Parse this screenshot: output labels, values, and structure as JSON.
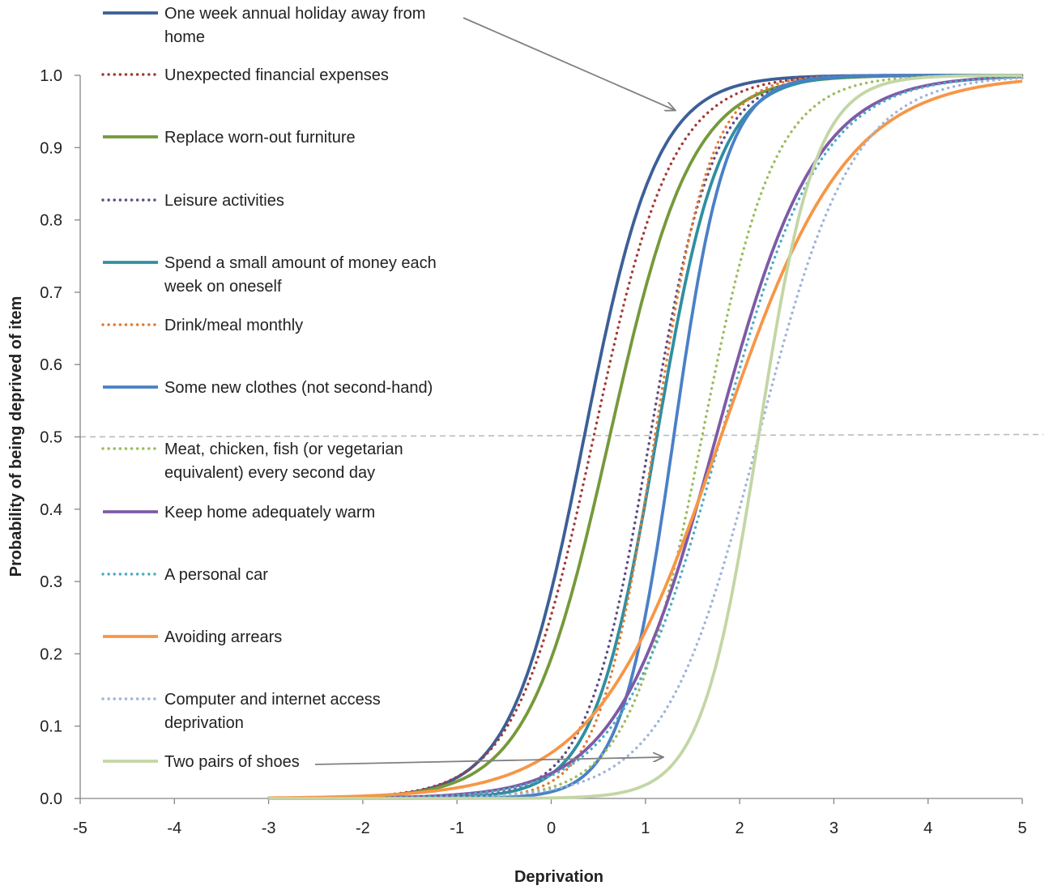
{
  "chart_data": {
    "type": "line",
    "title": "",
    "xlabel": "Deprivation",
    "ylabel": "Probability of being deprived of item",
    "xlim": [
      -5,
      5
    ],
    "ylim": [
      0,
      1
    ],
    "x_ticks": [
      "-5",
      "-4",
      "-3",
      "-2",
      "-1",
      "0",
      "1",
      "2",
      "3",
      "4",
      "5"
    ],
    "y_ticks": [
      "0.0",
      "0.1",
      "0.2",
      "0.3",
      "0.4",
      "0.5",
      "0.6",
      "0.7",
      "0.8",
      "0.9",
      "1.0"
    ],
    "x_range_plotted": [
      -3,
      5
    ],
    "reference_line": {
      "y": 0.5,
      "style": "dashed",
      "color": "#bbbbbb"
    },
    "grid": false,
    "legend_position": "left",
    "series": [
      {
        "name": "One week annual holiday away from home",
        "lines": [
          "One week annual holiday away from",
          "home"
        ],
        "color": "#3c5f96",
        "style": "solid",
        "discrimination": 2.6,
        "difficulty": 0.35
      },
      {
        "name": "Unexpected financial expenses",
        "lines": [
          "Unexpected financial expenses"
        ],
        "color": "#a33a37",
        "style": "dotted",
        "discrimination": 2.4,
        "difficulty": 0.45
      },
      {
        "name": "Replace worn-out furniture",
        "lines": [
          "Replace worn-out furniture"
        ],
        "color": "#76993a",
        "style": "solid",
        "discrimination": 2.3,
        "difficulty": 0.62
      },
      {
        "name": "Leisure activities",
        "lines": [
          "Leisure activities"
        ],
        "color": "#5f4a80",
        "style": "dotted",
        "discrimination": 3.0,
        "difficulty": 1.05
      },
      {
        "name": "Spend a small amount of money each week on oneself",
        "lines": [
          "Spend a small amount of money each",
          "week on oneself"
        ],
        "color": "#2f8fa0",
        "style": "solid",
        "discrimination": 3.0,
        "difficulty": 1.12
      },
      {
        "name": "Drink/meal monthly",
        "lines": [
          "Drink/meal monthly"
        ],
        "color": "#e07c34",
        "style": "dotted",
        "discrimination": 3.4,
        "difficulty": 1.1
      },
      {
        "name": "Some new clothes (not second-hand)",
        "lines": [
          "Some new clothes (not second-hand)"
        ],
        "color": "#4a80c6",
        "style": "solid",
        "discrimination": 3.6,
        "difficulty": 1.3
      },
      {
        "name": "Meat, chicken, fish (or vegetarian equivalent) every second day",
        "lines": [
          "Meat, chicken, fish (or vegetarian",
          "equivalent) every second day"
        ],
        "color": "#9bbb59",
        "style": "dotted",
        "discrimination": 2.6,
        "difficulty": 1.6
      },
      {
        "name": "Keep home adequately warm",
        "lines": [
          "Keep home adequately warm"
        ],
        "color": "#7d5ba6",
        "style": "solid",
        "discrimination": 1.9,
        "difficulty": 1.75
      },
      {
        "name": "A personal car",
        "lines": [
          "A personal car"
        ],
        "color": "#4bacc6",
        "style": "dotted",
        "discrimination": 1.9,
        "difficulty": 1.8
      },
      {
        "name": "Avoiding arrears",
        "lines": [
          "Avoiding arrears"
        ],
        "color": "#f79646",
        "style": "solid",
        "discrimination": 1.5,
        "difficulty": 1.8
      },
      {
        "name": "Computer and internet access deprivation",
        "lines": [
          "Computer and internet access",
          "deprivation"
        ],
        "color": "#9eb4d8",
        "style": "dotted",
        "discrimination": 2.0,
        "difficulty": 2.2
      },
      {
        "name": "Two pairs of shoes",
        "lines": [
          "Two pairs of shoes"
        ],
        "color": "#c3d6a5",
        "style": "solid",
        "discrimination": 3.3,
        "difficulty": 2.2
      }
    ]
  }
}
